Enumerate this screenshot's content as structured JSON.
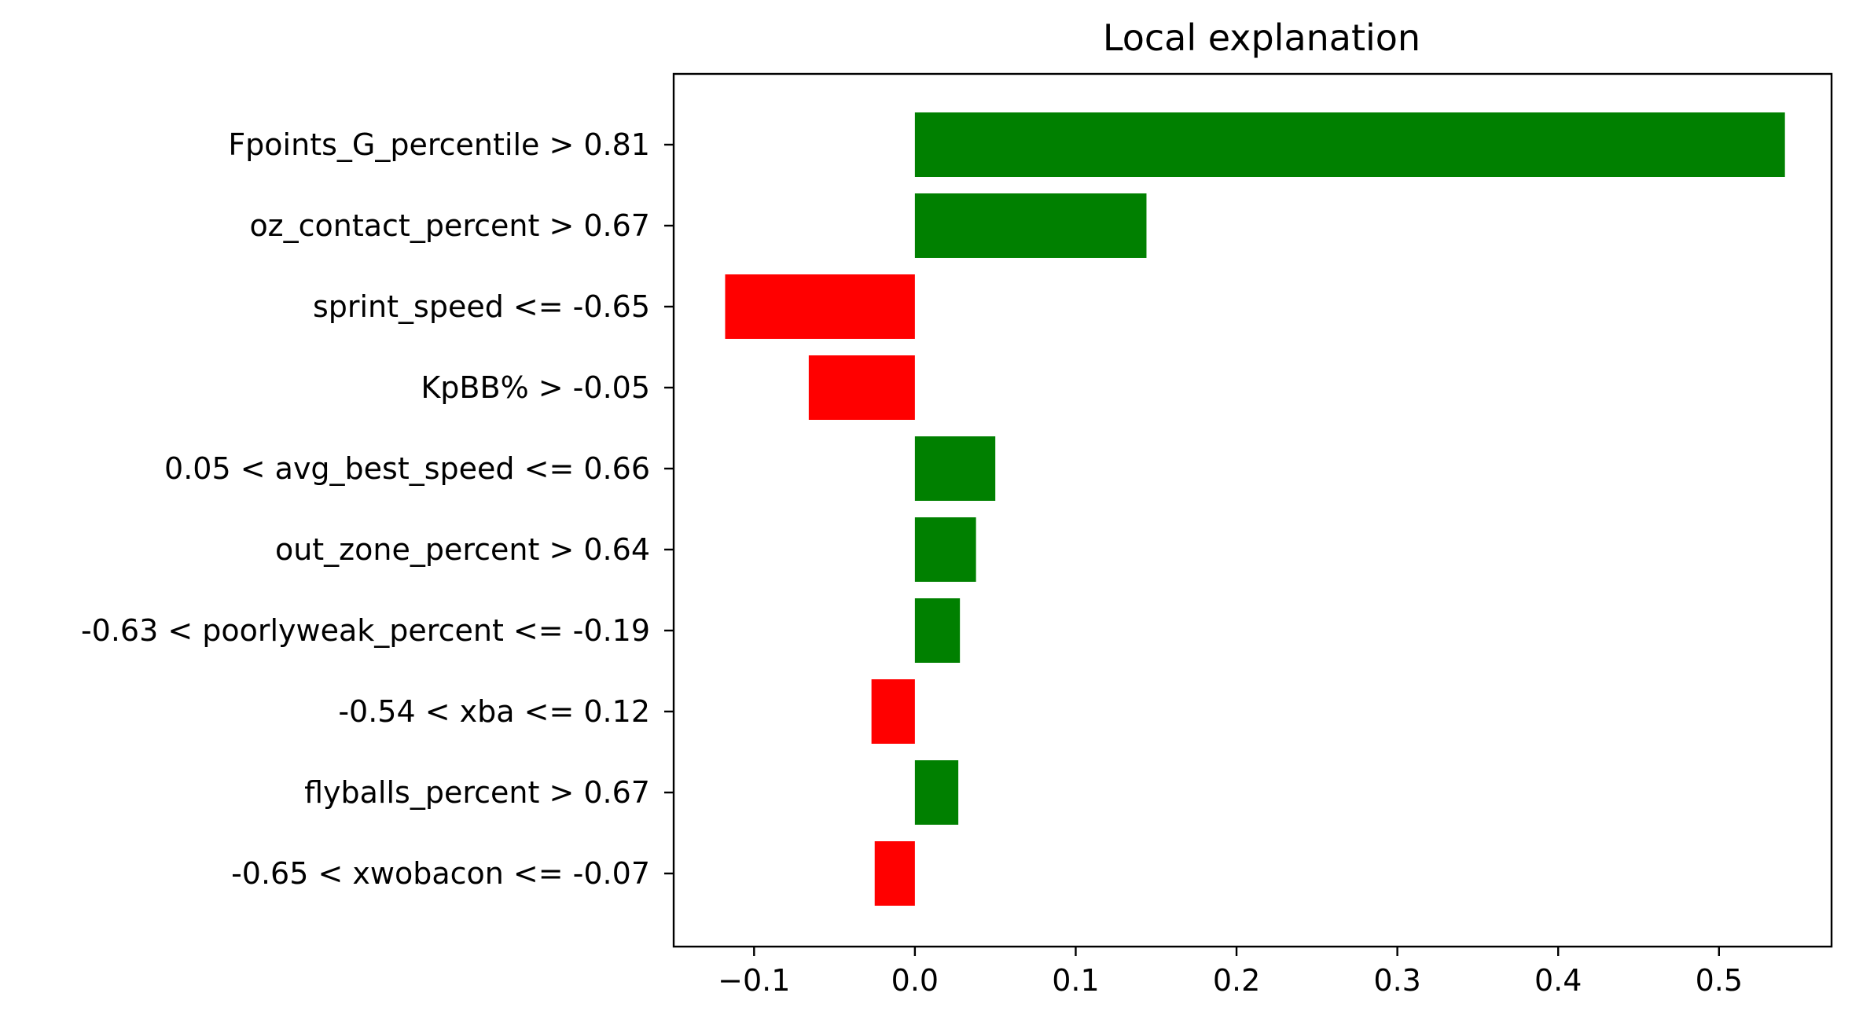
{
  "chart_data": {
    "type": "bar",
    "orientation": "horizontal",
    "title": "Local explanation",
    "xlabel": "",
    "ylabel": "",
    "xlim": [
      -0.15,
      0.57
    ],
    "xticks": [
      -0.1,
      0.0,
      0.1,
      0.2,
      0.3,
      0.4,
      0.5
    ],
    "xtick_labels": [
      "−0.1",
      "0.0",
      "0.1",
      "0.2",
      "0.3",
      "0.4",
      "0.5"
    ],
    "grid": false,
    "legend": "none",
    "colors": {
      "positive": "#008000",
      "negative": "#ff0000"
    },
    "categories": [
      "Fpoints_G_percentile > 0.81",
      "oz_contact_percent > 0.67",
      "sprint_speed <= -0.65",
      "KpBB% > -0.05",
      "0.05 < avg_best_speed <= 0.66",
      "out_zone_percent > 0.64",
      "-0.63 < poorlyweak_percent <= -0.19",
      "-0.54 < xba <= 0.12",
      "flyballs_percent > 0.67",
      "-0.65 < xwobacon <= -0.07"
    ],
    "values": [
      0.541,
      0.144,
      -0.118,
      -0.066,
      0.05,
      0.038,
      0.028,
      -0.027,
      0.027,
      -0.025
    ]
  }
}
